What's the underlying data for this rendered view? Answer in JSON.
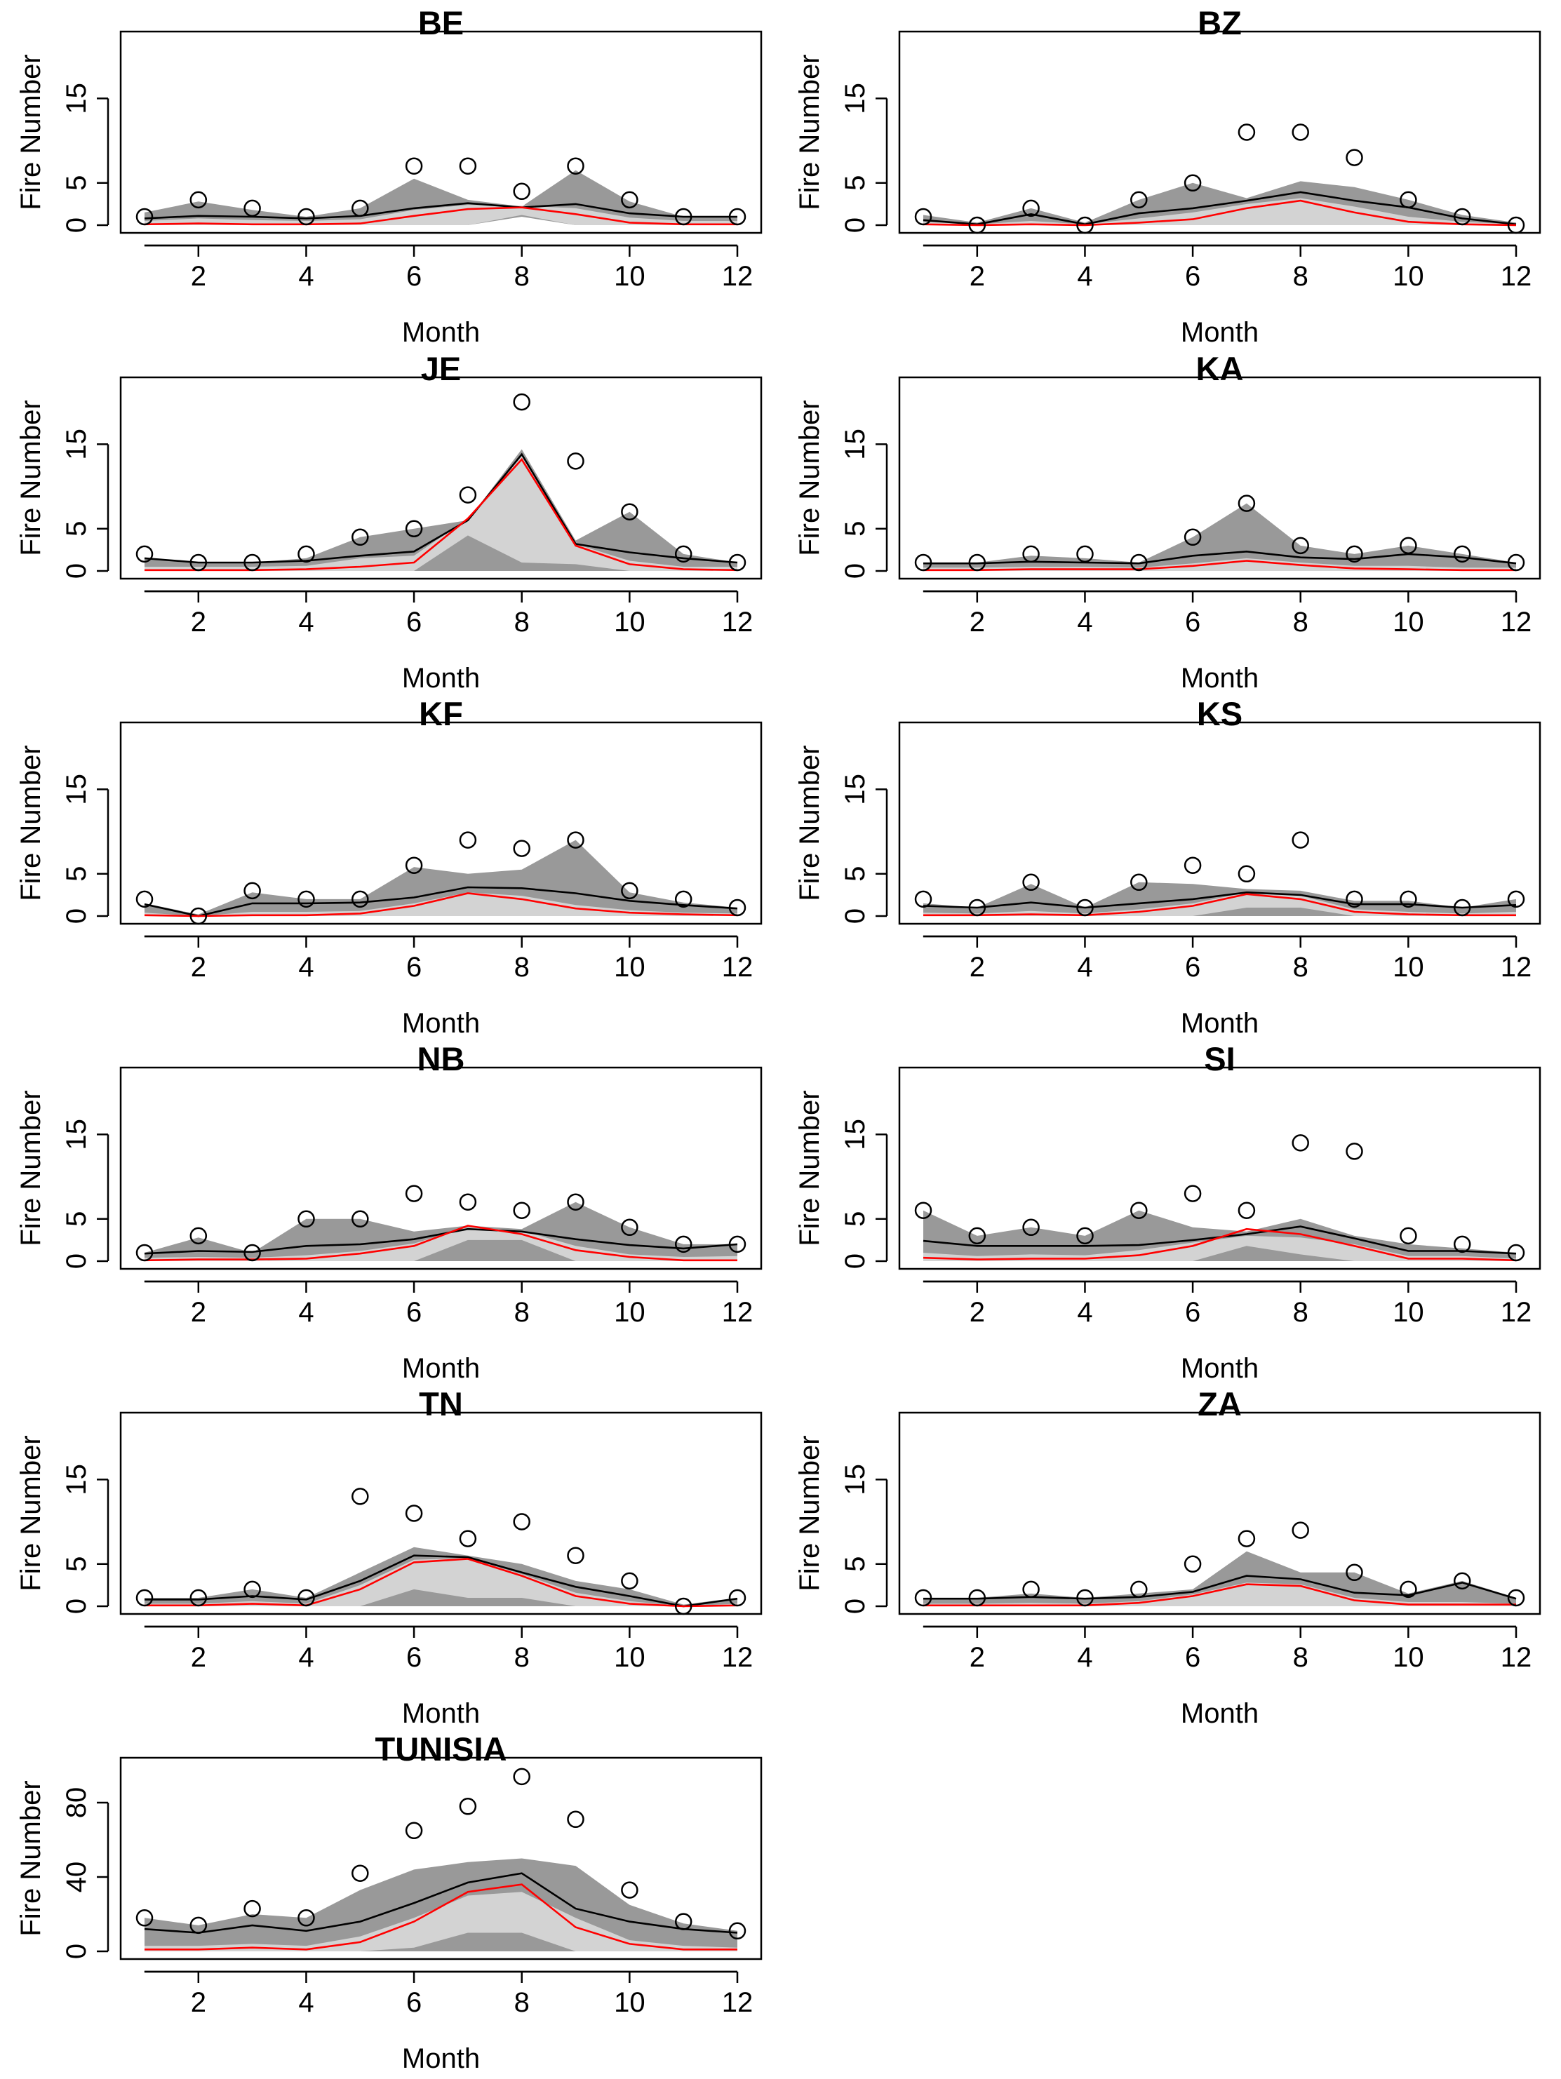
{
  "chart_data": [
    {
      "type": "line",
      "title": "BE",
      "xlabel": "Month",
      "ylabel": "Fire Number",
      "xlim": [
        1,
        12
      ],
      "ylim": [
        0,
        22
      ],
      "xticks": [
        2,
        4,
        6,
        8,
        10,
        12
      ],
      "yticks": [
        0,
        5,
        15
      ],
      "x": [
        1,
        2,
        3,
        4,
        5,
        6,
        7,
        8,
        9,
        10,
        11,
        12
      ],
      "observed": [
        1,
        3,
        2,
        1,
        2,
        7,
        7,
        4,
        7,
        3,
        1,
        1
      ],
      "black_line": [
        0.8,
        1.1,
        1.0,
        0.8,
        1.1,
        2.0,
        2.6,
        2.1,
        2.5,
        1.4,
        1.0,
        1.0
      ],
      "red_line": [
        0.1,
        0.2,
        0.1,
        0.1,
        0.2,
        1.1,
        1.9,
        2.1,
        1.3,
        0.3,
        0.1,
        0.1
      ],
      "dark_band_upper": [
        1.5,
        2.8,
        1.8,
        1.0,
        2.0,
        5.5,
        3.0,
        2.2,
        6.5,
        2.8,
        1.0,
        1.0
      ],
      "dark_band_lower": [
        0,
        0,
        0,
        0,
        0,
        0,
        0,
        1.0,
        0,
        0,
        0,
        0
      ],
      "light_band_upper": [
        0.5,
        0.8,
        0.6,
        0.5,
        0.7,
        1.8,
        2.4,
        2.3,
        2.0,
        0.9,
        0.5,
        0.5
      ],
      "light_band_lower": [
        0,
        0,
        0,
        0,
        0,
        0,
        0,
        1.2,
        0,
        0,
        0,
        0
      ]
    },
    {
      "type": "line",
      "title": "BZ",
      "xlabel": "Month",
      "ylabel": "Fire Number",
      "xlim": [
        1,
        12
      ],
      "ylim": [
        0,
        22
      ],
      "xticks": [
        2,
        4,
        6,
        8,
        10,
        12
      ],
      "yticks": [
        0,
        5,
        15
      ],
      "x": [
        1,
        2,
        3,
        4,
        5,
        6,
        7,
        8,
        9,
        10,
        11,
        12
      ],
      "observed": [
        1,
        0,
        2,
        0,
        3,
        5,
        11,
        11,
        8,
        3,
        1,
        0
      ],
      "black_line": [
        0.6,
        0.1,
        1.3,
        0.1,
        1.4,
        2.0,
        2.9,
        3.9,
        2.9,
        2.1,
        0.8,
        0.1
      ],
      "red_line": [
        0.1,
        0.0,
        0.1,
        0.0,
        0.3,
        0.7,
        2.0,
        2.9,
        1.5,
        0.4,
        0.1,
        0.0
      ],
      "dark_band_upper": [
        1.2,
        0.3,
        2.0,
        0.3,
        3.0,
        5.0,
        3.2,
        5.2,
        4.5,
        3.0,
        1.2,
        0.3
      ],
      "dark_band_lower": [
        0,
        0,
        0,
        0,
        0,
        0,
        0.3,
        0.5,
        0,
        0,
        0,
        0
      ],
      "light_band_upper": [
        0.4,
        0.1,
        0.5,
        0.1,
        0.8,
        1.5,
        2.5,
        3.2,
        2.2,
        1.0,
        0.4,
        0.1
      ],
      "light_band_lower": [
        0,
        0,
        0,
        0,
        0,
        0,
        0,
        0,
        0,
        0,
        0,
        0
      ]
    },
    {
      "type": "line",
      "title": "JE",
      "xlabel": "Month",
      "ylabel": "Fire Number",
      "xlim": [
        1,
        12
      ],
      "ylim": [
        0,
        22
      ],
      "xticks": [
        2,
        4,
        6,
        8,
        10,
        12
      ],
      "yticks": [
        0,
        5,
        15
      ],
      "x": [
        1,
        2,
        3,
        4,
        5,
        6,
        7,
        8,
        9,
        10,
        11,
        12
      ],
      "observed": [
        2,
        1,
        1,
        2,
        4,
        5,
        9,
        20,
        13,
        7,
        2,
        1
      ],
      "black_line": [
        1.5,
        1.0,
        1.0,
        1.2,
        1.8,
        2.3,
        6.0,
        13.8,
        3.2,
        2.2,
        1.5,
        1.0
      ],
      "red_line": [
        0.1,
        0.1,
        0.1,
        0.2,
        0.5,
        1.0,
        6.2,
        13.2,
        3.0,
        0.8,
        0.2,
        0.1
      ],
      "dark_band_upper": [
        1.5,
        1.0,
        1.0,
        1.5,
        4.0,
        5.0,
        6.0,
        14.4,
        3.6,
        7.0,
        2.0,
        1.0
      ],
      "dark_band_lower": [
        0,
        0,
        0,
        0,
        0,
        0,
        0,
        0,
        0,
        0,
        0,
        0
      ],
      "light_band_upper": [
        0.5,
        0.5,
        0.5,
        0.6,
        1.5,
        1.8,
        6.2,
        13.8,
        3.2,
        1.2,
        0.5,
        0.5
      ],
      "light_band_lower": [
        0,
        0,
        0,
        0,
        0,
        0,
        4.2,
        1.0,
        0.8,
        0,
        0,
        0
      ]
    },
    {
      "type": "line",
      "title": "KA",
      "xlabel": "Month",
      "ylabel": "Fire Number",
      "xlim": [
        1,
        12
      ],
      "ylim": [
        0,
        22
      ],
      "xticks": [
        2,
        4,
        6,
        8,
        10,
        12
      ],
      "yticks": [
        0,
        5,
        15
      ],
      "x": [
        1,
        2,
        3,
        4,
        5,
        6,
        7,
        8,
        9,
        10,
        11,
        12
      ],
      "observed": [
        1,
        1,
        2,
        2,
        1,
        4,
        8,
        3,
        2,
        3,
        2,
        1
      ],
      "black_line": [
        0.9,
        0.9,
        1.1,
        1.0,
        0.9,
        1.8,
        2.3,
        1.6,
        1.4,
        2.0,
        1.6,
        0.9
      ],
      "red_line": [
        0.1,
        0.1,
        0.2,
        0.2,
        0.2,
        0.6,
        1.2,
        0.7,
        0.3,
        0.2,
        0.1,
        0.1
      ],
      "dark_band_upper": [
        1.0,
        1.0,
        1.8,
        1.5,
        1.0,
        4.0,
        8.0,
        3.0,
        2.0,
        3.0,
        2.0,
        1.0
      ],
      "dark_band_lower": [
        0,
        0,
        0,
        0,
        0,
        0,
        0,
        0,
        0,
        0,
        0,
        0
      ],
      "light_band_upper": [
        0.4,
        0.4,
        0.5,
        0.5,
        0.4,
        0.9,
        1.5,
        1.0,
        0.6,
        0.6,
        0.4,
        0.4
      ],
      "light_band_lower": [
        0,
        0,
        0,
        0,
        0,
        0,
        0,
        0,
        0,
        0,
        0,
        0
      ]
    },
    {
      "type": "line",
      "title": "KF",
      "xlabel": "Month",
      "ylabel": "Fire Number",
      "xlim": [
        1,
        12
      ],
      "ylim": [
        0,
        22
      ],
      "xticks": [
        2,
        4,
        6,
        8,
        10,
        12
      ],
      "yticks": [
        0,
        5,
        15
      ],
      "x": [
        1,
        2,
        3,
        4,
        5,
        6,
        7,
        8,
        9,
        10,
        11,
        12
      ],
      "observed": [
        2,
        0,
        3,
        2,
        2,
        6,
        9,
        8,
        9,
        3,
        2,
        1
      ],
      "black_line": [
        1.4,
        0.0,
        1.5,
        1.5,
        1.6,
        2.2,
        3.4,
        3.3,
        2.7,
        1.8,
        1.3,
        0.9
      ],
      "red_line": [
        0.1,
        0.0,
        0.1,
        0.1,
        0.3,
        1.2,
        2.7,
        2.0,
        0.9,
        0.4,
        0.2,
        0.1
      ],
      "dark_band_upper": [
        1.5,
        0.2,
        2.8,
        2.0,
        2.0,
        5.8,
        5.0,
        5.5,
        9.0,
        2.8,
        1.6,
        1.0
      ],
      "dark_band_lower": [
        0,
        0,
        0,
        0,
        0,
        0,
        0,
        0,
        0,
        0,
        0,
        0
      ],
      "light_band_upper": [
        0.4,
        0.0,
        0.5,
        0.5,
        0.6,
        1.5,
        2.8,
        2.4,
        1.3,
        0.7,
        0.4,
        0.3
      ],
      "light_band_lower": [
        0,
        0,
        0,
        0,
        0,
        0,
        0,
        0,
        0,
        0,
        0,
        0
      ]
    },
    {
      "type": "line",
      "title": "KS",
      "xlabel": "Month",
      "ylabel": "Fire Number",
      "xlim": [
        1,
        12
      ],
      "ylim": [
        0,
        22
      ],
      "xticks": [
        2,
        4,
        6,
        8,
        10,
        12
      ],
      "yticks": [
        0,
        5,
        15
      ],
      "x": [
        1,
        2,
        3,
        4,
        5,
        6,
        7,
        8,
        9,
        10,
        11,
        12
      ],
      "observed": [
        2,
        1,
        4,
        1,
        4,
        6,
        5,
        9,
        2,
        2,
        1,
        2
      ],
      "black_line": [
        1.2,
        1.0,
        1.6,
        1.0,
        1.5,
        2.0,
        2.8,
        2.5,
        1.4,
        1.4,
        1.0,
        1.3
      ],
      "red_line": [
        0.1,
        0.1,
        0.2,
        0.1,
        0.5,
        1.2,
        2.6,
        2.0,
        0.5,
        0.2,
        0.1,
        0.1
      ],
      "dark_band_upper": [
        1.5,
        1.0,
        3.8,
        1.0,
        4.0,
        3.8,
        3.2,
        3.0,
        1.8,
        1.8,
        1.0,
        2.0
      ],
      "dark_band_lower": [
        0,
        0,
        0,
        0,
        0,
        0,
        0,
        0,
        0,
        0,
        0,
        0
      ],
      "light_band_upper": [
        0.4,
        0.3,
        0.6,
        0.3,
        0.8,
        1.5,
        2.8,
        2.4,
        0.8,
        0.5,
        0.3,
        0.5
      ],
      "light_band_lower": [
        0,
        0,
        0,
        0,
        0,
        0,
        1.0,
        1.0,
        0,
        0,
        0,
        0
      ]
    },
    {
      "type": "line",
      "title": "NB",
      "xlabel": "Month",
      "ylabel": "Fire Number",
      "xlim": [
        1,
        12
      ],
      "ylim": [
        0,
        22
      ],
      "xticks": [
        2,
        4,
        6,
        8,
        10,
        12
      ],
      "yticks": [
        0,
        5,
        15
      ],
      "x": [
        1,
        2,
        3,
        4,
        5,
        6,
        7,
        8,
        9,
        10,
        11,
        12
      ],
      "observed": [
        1,
        3,
        1,
        5,
        5,
        8,
        7,
        6,
        7,
        4,
        2,
        2
      ],
      "black_line": [
        0.9,
        1.2,
        1.1,
        1.8,
        2.0,
        2.6,
        3.8,
        3.5,
        2.6,
        1.9,
        1.5,
        2.0
      ],
      "red_line": [
        0.1,
        0.2,
        0.2,
        0.3,
        0.9,
        1.8,
        4.2,
        3.2,
        1.3,
        0.5,
        0.1,
        0.1
      ],
      "dark_band_upper": [
        1.0,
        2.8,
        1.0,
        5.0,
        5.0,
        3.5,
        4.2,
        3.8,
        7.0,
        4.0,
        2.0,
        2.0
      ],
      "dark_band_lower": [
        0,
        0,
        0,
        0,
        0,
        0,
        0,
        0,
        0,
        0,
        0,
        0
      ],
      "light_band_upper": [
        0.4,
        0.5,
        0.4,
        0.7,
        1.2,
        2.1,
        4.0,
        3.6,
        1.8,
        0.8,
        0.5,
        0.6
      ],
      "light_band_lower": [
        0,
        0,
        0,
        0,
        0,
        0,
        2.5,
        2.5,
        0,
        0,
        0,
        0
      ]
    },
    {
      "type": "line",
      "title": "SI",
      "xlabel": "Month",
      "ylabel": "Fire Number",
      "xlim": [
        1,
        12
      ],
      "ylim": [
        0,
        22
      ],
      "xticks": [
        2,
        4,
        6,
        8,
        10,
        12
      ],
      "yticks": [
        0,
        5,
        15
      ],
      "x": [
        1,
        2,
        3,
        4,
        5,
        6,
        7,
        8,
        9,
        10,
        11,
        12
      ],
      "observed": [
        6,
        3,
        4,
        3,
        6,
        8,
        6,
        14,
        13,
        3,
        2,
        1
      ],
      "black_line": [
        2.4,
        1.8,
        1.8,
        1.8,
        1.9,
        2.5,
        3.2,
        4.1,
        2.7,
        1.2,
        1.2,
        0.9
      ],
      "red_line": [
        0.4,
        0.2,
        0.3,
        0.3,
        0.7,
        1.8,
        3.8,
        3.2,
        1.8,
        0.3,
        0.3,
        0.1
      ],
      "dark_band_upper": [
        6.0,
        3.0,
        4.0,
        3.0,
        6.0,
        4.0,
        3.5,
        5.0,
        3.0,
        2.0,
        1.5,
        1.0
      ],
      "dark_band_lower": [
        0,
        0,
        0,
        0,
        0,
        0,
        0,
        0,
        0,
        0,
        0,
        0
      ],
      "light_band_upper": [
        1.0,
        0.6,
        0.8,
        0.7,
        1.3,
        2.2,
        3.0,
        2.8,
        2.0,
        0.6,
        0.6,
        0.3
      ],
      "light_band_lower": [
        0,
        0,
        0,
        0,
        0,
        0,
        1.8,
        0.8,
        0,
        0,
        0,
        0
      ]
    },
    {
      "type": "line",
      "title": "TN",
      "xlabel": "Month",
      "ylabel": "Fire Number",
      "xlim": [
        1,
        12
      ],
      "ylim": [
        0,
        22
      ],
      "xticks": [
        2,
        4,
        6,
        8,
        10,
        12
      ],
      "yticks": [
        0,
        5,
        15
      ],
      "x": [
        1,
        2,
        3,
        4,
        5,
        6,
        7,
        8,
        9,
        10,
        11,
        12
      ],
      "observed": [
        1,
        1,
        2,
        1,
        13,
        11,
        8,
        10,
        6,
        3,
        0,
        1
      ],
      "black_line": [
        0.8,
        0.8,
        1.2,
        0.8,
        3.0,
        6.0,
        5.8,
        4.0,
        2.3,
        1.2,
        0.0,
        0.9
      ],
      "red_line": [
        0.1,
        0.1,
        0.3,
        0.1,
        2.0,
        5.2,
        5.6,
        3.6,
        1.2,
        0.3,
        0.0,
        0.1
      ],
      "dark_band_upper": [
        1.0,
        1.0,
        2.0,
        1.0,
        4.0,
        7.0,
        6.0,
        5.0,
        3.0,
        2.0,
        0.2,
        1.0
      ],
      "dark_band_lower": [
        0,
        0,
        0,
        0,
        0,
        0,
        0,
        0,
        0,
        0,
        0,
        0
      ],
      "light_band_upper": [
        0.3,
        0.3,
        0.6,
        0.3,
        2.5,
        5.5,
        5.7,
        3.8,
        1.6,
        0.6,
        0.0,
        0.3
      ],
      "light_band_lower": [
        0,
        0,
        0,
        0,
        0,
        2.0,
        1.0,
        1.0,
        0,
        0,
        0,
        0
      ]
    },
    {
      "type": "line",
      "title": "ZA",
      "xlabel": "Month",
      "ylabel": "Fire Number",
      "xlim": [
        1,
        12
      ],
      "ylim": [
        0,
        22
      ],
      "xticks": [
        2,
        4,
        6,
        8,
        10,
        12
      ],
      "yticks": [
        0,
        5,
        15
      ],
      "x": [
        1,
        2,
        3,
        4,
        5,
        6,
        7,
        8,
        9,
        10,
        11,
        12
      ],
      "observed": [
        1,
        1,
        2,
        1,
        2,
        5,
        8,
        9,
        4,
        2,
        3,
        1
      ],
      "black_line": [
        0.9,
        0.9,
        1.1,
        0.9,
        1.1,
        1.7,
        3.6,
        3.2,
        1.6,
        1.3,
        2.8,
        0.9
      ],
      "red_line": [
        0.1,
        0.1,
        0.1,
        0.1,
        0.4,
        1.2,
        2.6,
        2.4,
        0.7,
        0.2,
        0.2,
        0.2
      ],
      "dark_band_upper": [
        1.0,
        1.0,
        1.5,
        1.0,
        1.5,
        2.0,
        6.5,
        4.0,
        4.0,
        1.5,
        3.0,
        1.0
      ],
      "dark_band_lower": [
        0,
        0,
        0,
        0,
        0,
        0,
        0,
        0,
        0,
        0,
        0,
        0
      ],
      "light_band_upper": [
        0.3,
        0.3,
        0.4,
        0.3,
        0.6,
        1.4,
        2.8,
        2.6,
        1.0,
        0.5,
        0.5,
        0.3
      ],
      "light_band_lower": [
        0,
        0,
        0,
        0,
        0,
        0,
        0,
        0,
        0,
        0,
        0,
        0
      ]
    },
    {
      "type": "line",
      "title": "TUNISIA",
      "xlabel": "Month",
      "ylabel": "Fire Number",
      "xlim": [
        1,
        12
      ],
      "ylim": [
        0,
        100
      ],
      "xticks": [
        2,
        4,
        6,
        8,
        10,
        12
      ],
      "yticks": [
        0,
        40,
        80
      ],
      "x": [
        1,
        2,
        3,
        4,
        5,
        6,
        7,
        8,
        9,
        10,
        11,
        12
      ],
      "observed": [
        18,
        14,
        23,
        18,
        42,
        65,
        78,
        94,
        71,
        33,
        16,
        11
      ],
      "black_line": [
        12,
        10,
        14,
        11,
        16,
        26,
        37,
        42,
        23,
        16,
        12,
        10
      ],
      "red_line": [
        1,
        1,
        2,
        1,
        5,
        16,
        32,
        36,
        13,
        4,
        1,
        1
      ],
      "dark_band_upper": [
        18,
        14,
        20,
        18,
        33,
        44,
        48,
        50,
        46,
        25,
        15,
        11
      ],
      "dark_band_lower": [
        0,
        0,
        0,
        0,
        0,
        0,
        0,
        0,
        0,
        0,
        0,
        0
      ],
      "light_band_upper": [
        3,
        3,
        4,
        3,
        8,
        18,
        30,
        32,
        18,
        6,
        3,
        2
      ],
      "light_band_lower": [
        0,
        0,
        0,
        0,
        0,
        2,
        10,
        10,
        0,
        0,
        0,
        0
      ]
    }
  ]
}
